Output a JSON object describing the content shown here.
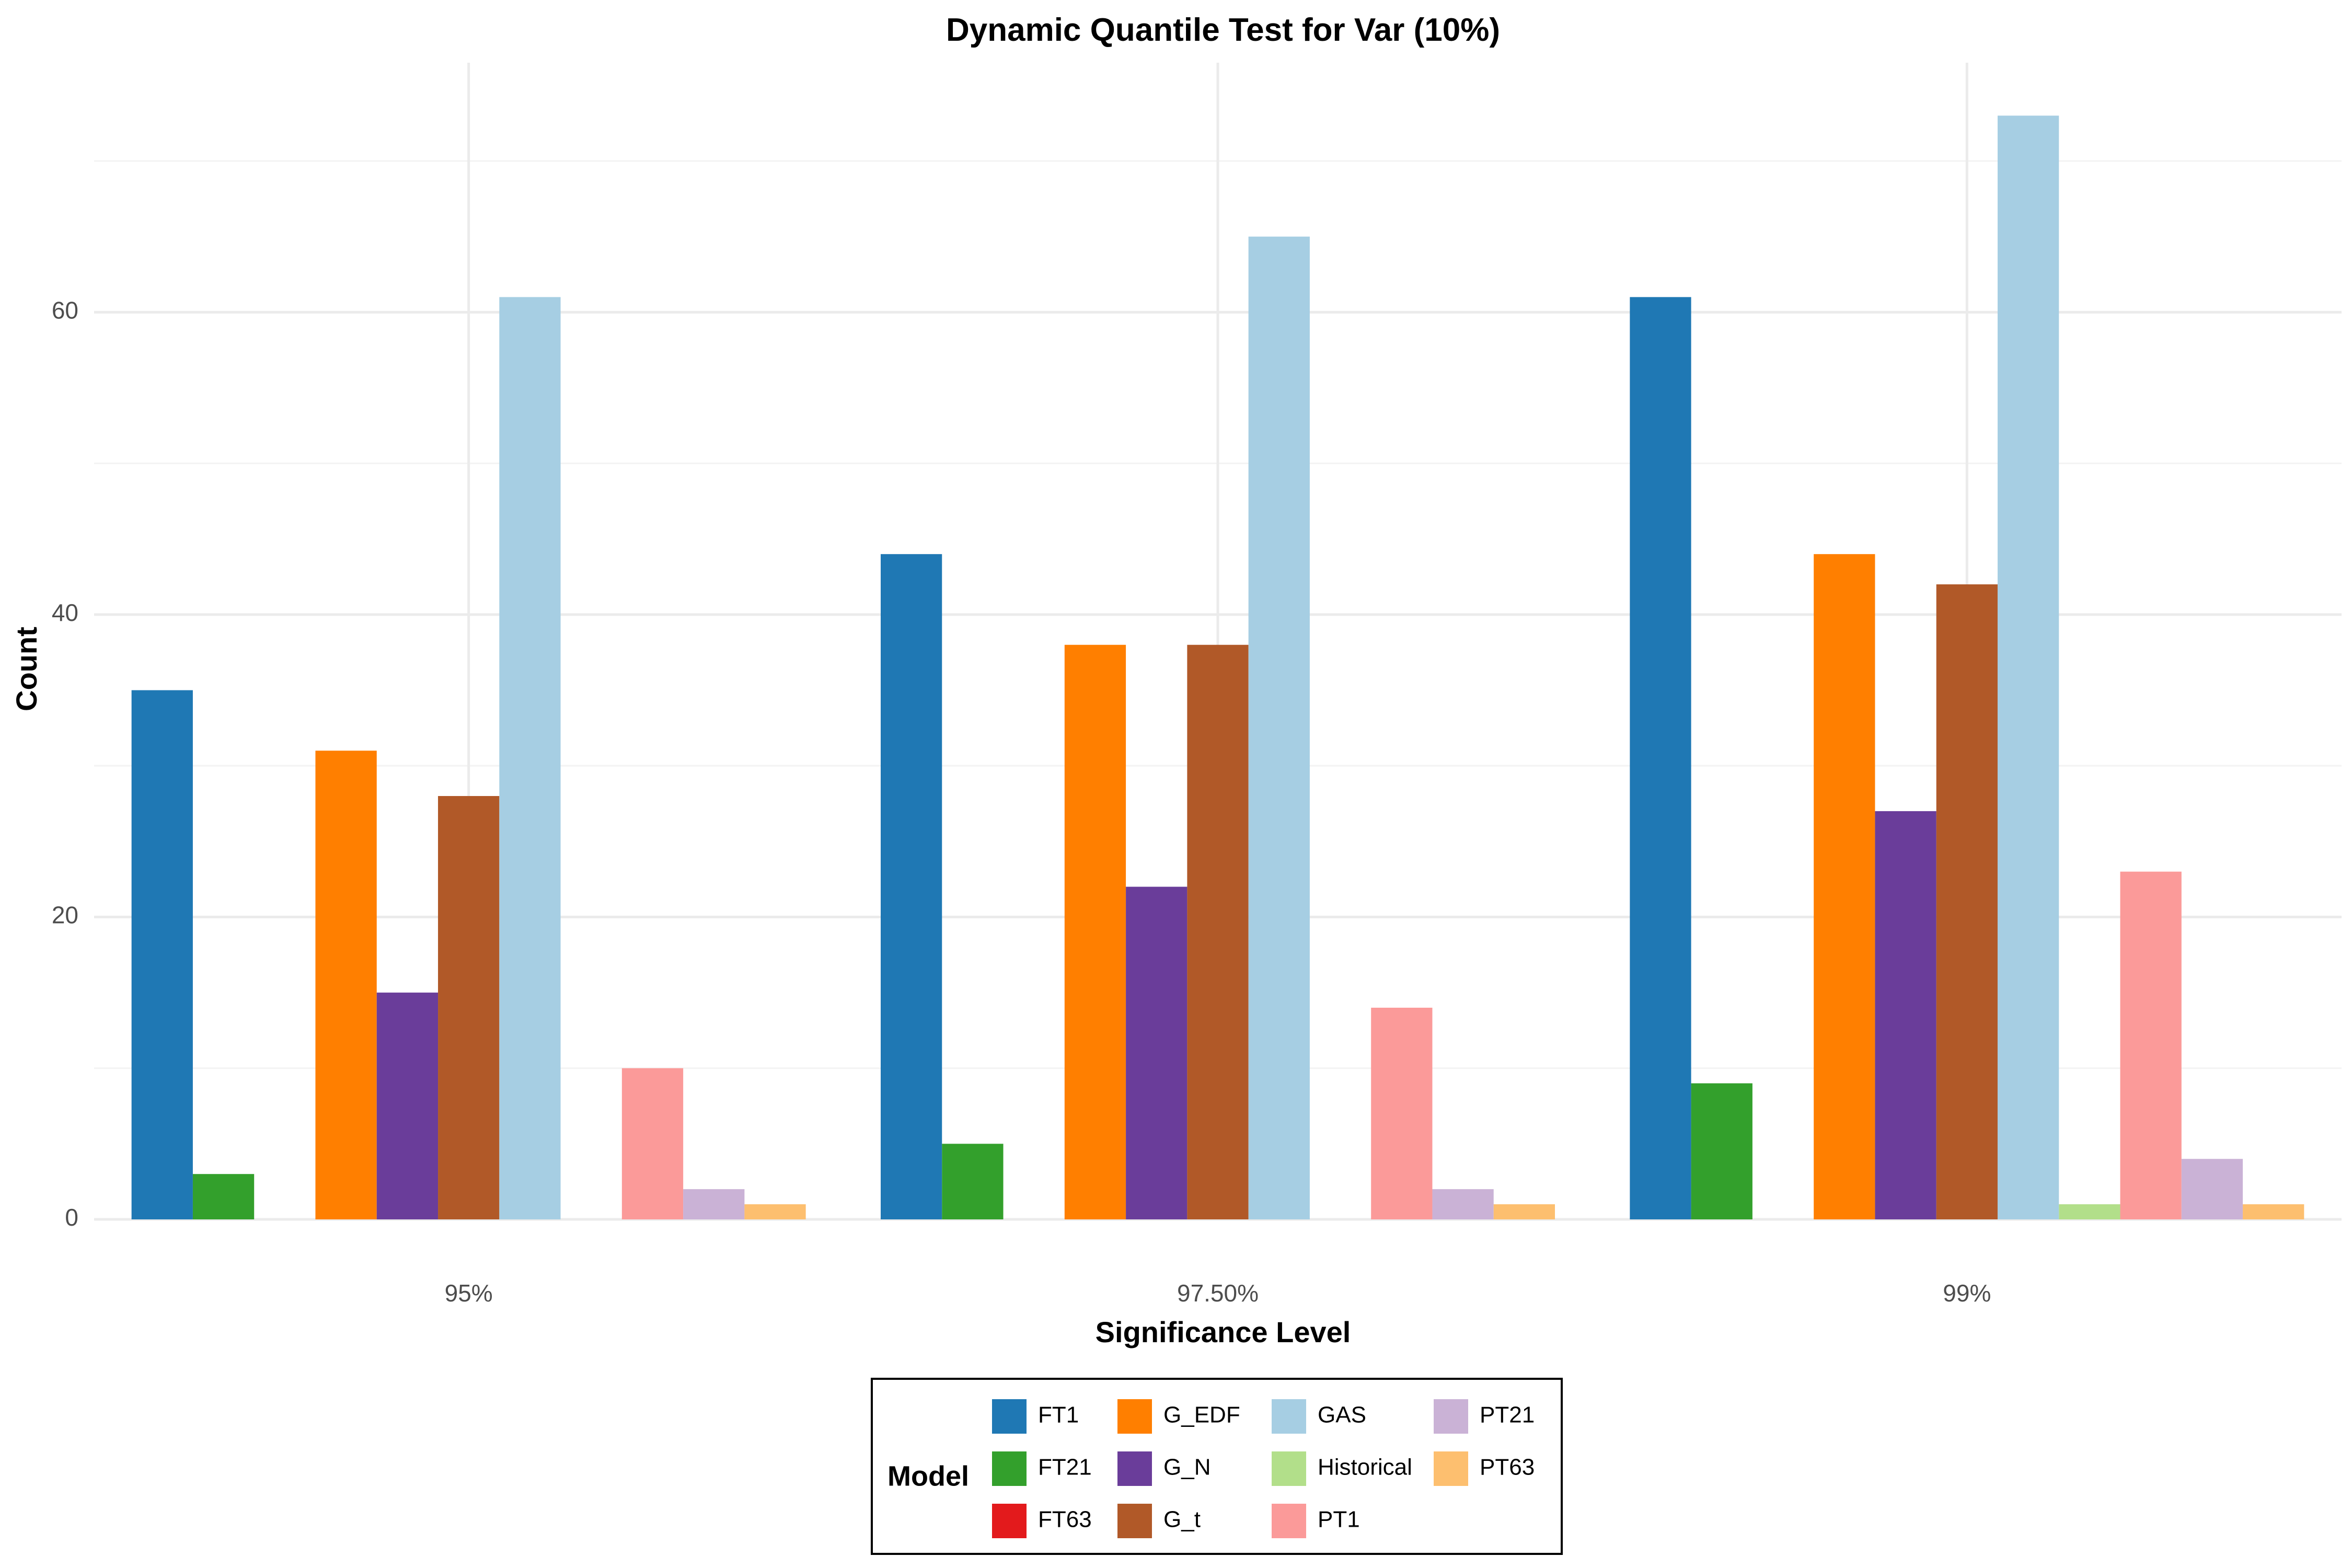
{
  "chart_data": {
    "type": "bar",
    "title": "Dynamic Quantile Test for Var (10%)",
    "xlabel": "Significance Level",
    "ylabel": "Count",
    "categories": [
      "95%",
      "97.50%",
      "99%"
    ],
    "ylim": [
      0,
      76.5
    ],
    "yticks": [
      0,
      20,
      40,
      60
    ],
    "grid": true,
    "legend": {
      "title": "Model",
      "placement": "bottom",
      "ncol": 4
    },
    "series": [
      {
        "name": "FT1",
        "color": "#1f78b4",
        "values": [
          35,
          44,
          61
        ]
      },
      {
        "name": "FT21",
        "color": "#33a02c",
        "values": [
          3,
          5,
          9
        ]
      },
      {
        "name": "FT63",
        "color": "#e31a1c",
        "values": [
          0,
          0,
          0
        ]
      },
      {
        "name": "G_EDF",
        "color": "#ff7f00",
        "values": [
          31,
          38,
          44
        ]
      },
      {
        "name": "G_N",
        "color": "#6a3d9a",
        "values": [
          15,
          22,
          27
        ]
      },
      {
        "name": "G_t",
        "color": "#b15928",
        "values": [
          28,
          38,
          42
        ]
      },
      {
        "name": "GAS",
        "color": "#a6cee3",
        "values": [
          61,
          65,
          73
        ]
      },
      {
        "name": "Historical",
        "color": "#b2df8a",
        "values": [
          0,
          0,
          1
        ]
      },
      {
        "name": "PT1",
        "color": "#fb9a99",
        "values": [
          10,
          14,
          23
        ]
      },
      {
        "name": "PT21",
        "color": "#cab2d6",
        "values": [
          2,
          2,
          4
        ]
      },
      {
        "name": "PT63",
        "color": "#fdbf6f",
        "values": [
          1,
          1,
          1
        ]
      }
    ]
  }
}
